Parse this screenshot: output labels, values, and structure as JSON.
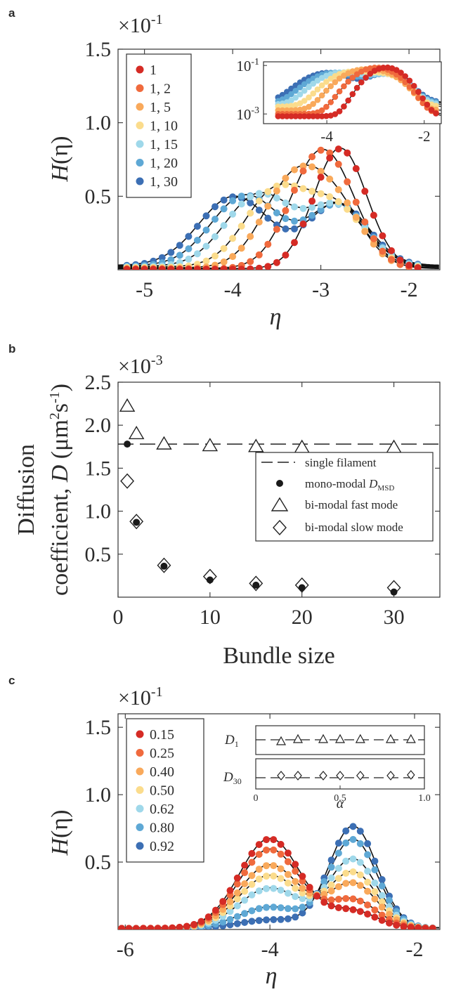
{
  "chart_data": [
    {
      "panel": "a",
      "type": "scatter",
      "multiplier": "×10",
      "multiplier_exp": "-1",
      "xlabel": "η",
      "ylabel_main": "H",
      "ylabel_arg": "(η)",
      "xlim": [
        -5.3,
        -1.65
      ],
      "ylim": [
        0.0,
        1.5
      ],
      "xticks": [
        -5,
        -4,
        -3,
        -2
      ],
      "xtick_labels": [
        "-5",
        "-4",
        "-3",
        "-2"
      ],
      "yticks": [
        0.5,
        1.0,
        1.5
      ],
      "ytick_labels": [
        "0.5",
        "1.0",
        "1.5"
      ],
      "legend_position": "top-left",
      "legend_title": "",
      "series": [
        {
          "name": "1",
          "color": "#d52b25"
        },
        {
          "name": "1, 2",
          "color": "#f06a3d"
        },
        {
          "name": "1, 5",
          "color": "#f9a95b"
        },
        {
          "name": "1, 10",
          "color": "#fbdc8c"
        },
        {
          "name": "1, 15",
          "color": "#9fd8ea"
        },
        {
          "name": "1, 20",
          "color": "#5ea8d5"
        },
        {
          "name": "1, 30",
          "color": "#3c6fb4"
        }
      ],
      "curves": [
        {
          "peaks": [
            [
              -2.78,
              0.3,
              0.82
            ]
          ],
          "base": 0.008
        },
        {
          "peaks": [
            [
              -3.05,
              0.33,
              0.66
            ],
            [
              -2.75,
              0.3,
              0.22
            ]
          ],
          "base": 0.01
        },
        {
          "peaks": [
            [
              -3.3,
              0.35,
              0.6
            ],
            [
              -2.78,
              0.3,
              0.32
            ]
          ],
          "base": 0.014
        },
        {
          "peaks": [
            [
              -3.5,
              0.36,
              0.52
            ],
            [
              -2.8,
              0.32,
              0.37
            ]
          ],
          "base": 0.02
        },
        {
          "peaks": [
            [
              -3.7,
              0.38,
              0.49
            ],
            [
              -2.8,
              0.33,
              0.4
            ]
          ],
          "base": 0.024
        },
        {
          "peaks": [
            [
              -3.85,
              0.39,
              0.48
            ],
            [
              -2.8,
              0.33,
              0.41
            ]
          ],
          "base": 0.028
        },
        {
          "peaks": [
            [
              -3.98,
              0.4,
              0.47
            ],
            [
              -2.8,
              0.34,
              0.42
            ]
          ],
          "base": 0.03
        }
      ],
      "inset": {
        "scale": "log",
        "xlim": [
          -5.3,
          -1.65
        ],
        "ylim_log10": [
          -3.4,
          -0.85
        ],
        "xticks": [
          -4,
          -2
        ],
        "xtick_labels": [
          "-4",
          "-2"
        ],
        "ytick_values": [
          -3,
          -1
        ],
        "ytick_base": "10",
        "ytick_exps": [
          "-3",
          "-1"
        ]
      }
    },
    {
      "panel": "b",
      "type": "scatter",
      "multiplier": "×10",
      "multiplier_exp": "-3",
      "xlabel": "Bundle size",
      "ylabel_line1": "Diffusion",
      "ylabel_line2": "coefficient, ",
      "ylabel_var": "D",
      "ylabel_unit_pre": " (μm",
      "ylabel_unit_sup1": "2",
      "ylabel_unit_mid": "s",
      "ylabel_unit_sup2": "-1",
      "ylabel_unit_post": ")",
      "xlim": [
        0,
        35
      ],
      "ylim": [
        0.0,
        2.5
      ],
      "xticks": [
        0,
        10,
        20,
        30
      ],
      "xtick_labels": [
        "0",
        "10",
        "20",
        "30"
      ],
      "yticks": [
        0.5,
        1.0,
        1.5,
        2.0,
        2.5
      ],
      "ytick_labels": [
        "0.5",
        "1.0",
        "1.5",
        "2.0",
        "2.5"
      ],
      "single_filament": 1.78,
      "x": [
        1,
        2,
        5,
        10,
        15,
        20,
        30
      ],
      "mono_modal": [
        1.78,
        0.87,
        0.36,
        0.2,
        0.14,
        0.11,
        0.06
      ],
      "fast_mode": [
        2.22,
        1.9,
        1.78,
        1.76,
        1.75,
        1.74,
        1.74
      ],
      "slow_mode": [
        1.35,
        0.88,
        0.37,
        0.24,
        0.16,
        0.14,
        0.11
      ],
      "legend_position": "bottom-right",
      "legend": {
        "single": "single filament",
        "mono": "mono-modal ",
        "mono_var": "D",
        "mono_sub": "MSD",
        "fast": "bi-modal fast mode",
        "slow": "bi-modal slow mode"
      }
    },
    {
      "panel": "c",
      "type": "scatter",
      "multiplier": "×10",
      "multiplier_exp": "-1",
      "xlabel": "η",
      "ylabel_main": "H",
      "ylabel_arg": "(η)",
      "xlim": [
        -6.1,
        -1.65
      ],
      "ylim": [
        0.0,
        1.6
      ],
      "xticks": [
        -6,
        -4,
        -2
      ],
      "xtick_labels": [
        "-6",
        "-4",
        "-2"
      ],
      "yticks": [
        0.5,
        1.0,
        1.5
      ],
      "ytick_labels": [
        "0.5",
        "1.0",
        "1.5"
      ],
      "legend_position": "top-left",
      "series": [
        {
          "name": "0.15",
          "color": "#d52b25",
          "alpha": 0.15
        },
        {
          "name": "0.25",
          "color": "#f06a3d",
          "alpha": 0.25
        },
        {
          "name": "0.40",
          "color": "#f9a95b",
          "alpha": 0.4
        },
        {
          "name": "0.50",
          "color": "#fbdc8c",
          "alpha": 0.5
        },
        {
          "name": "0.62",
          "color": "#9fd8ea",
          "alpha": 0.62
        },
        {
          "name": "0.80",
          "color": "#5ea8d5",
          "alpha": 0.8
        },
        {
          "name": "0.92",
          "color": "#3c6fb4",
          "alpha": 0.92
        }
      ],
      "slow_peak": [
        -4.0,
        0.42,
        0.78
      ],
      "fast_peak": [
        -2.85,
        0.33,
        0.82
      ],
      "inset": {
        "xlim": [
          0,
          1
        ],
        "xticks": [
          0,
          0.5,
          1.0
        ],
        "xtick_labels": [
          "0",
          "0.5",
          "1.0"
        ],
        "xlabel": "α",
        "row1_var": "D",
        "row1_sub": "1",
        "row2_var": "D",
        "row2_sub": "30",
        "alphas": [
          0.15,
          0.25,
          0.4,
          0.5,
          0.62,
          0.8,
          0.92
        ]
      }
    }
  ]
}
